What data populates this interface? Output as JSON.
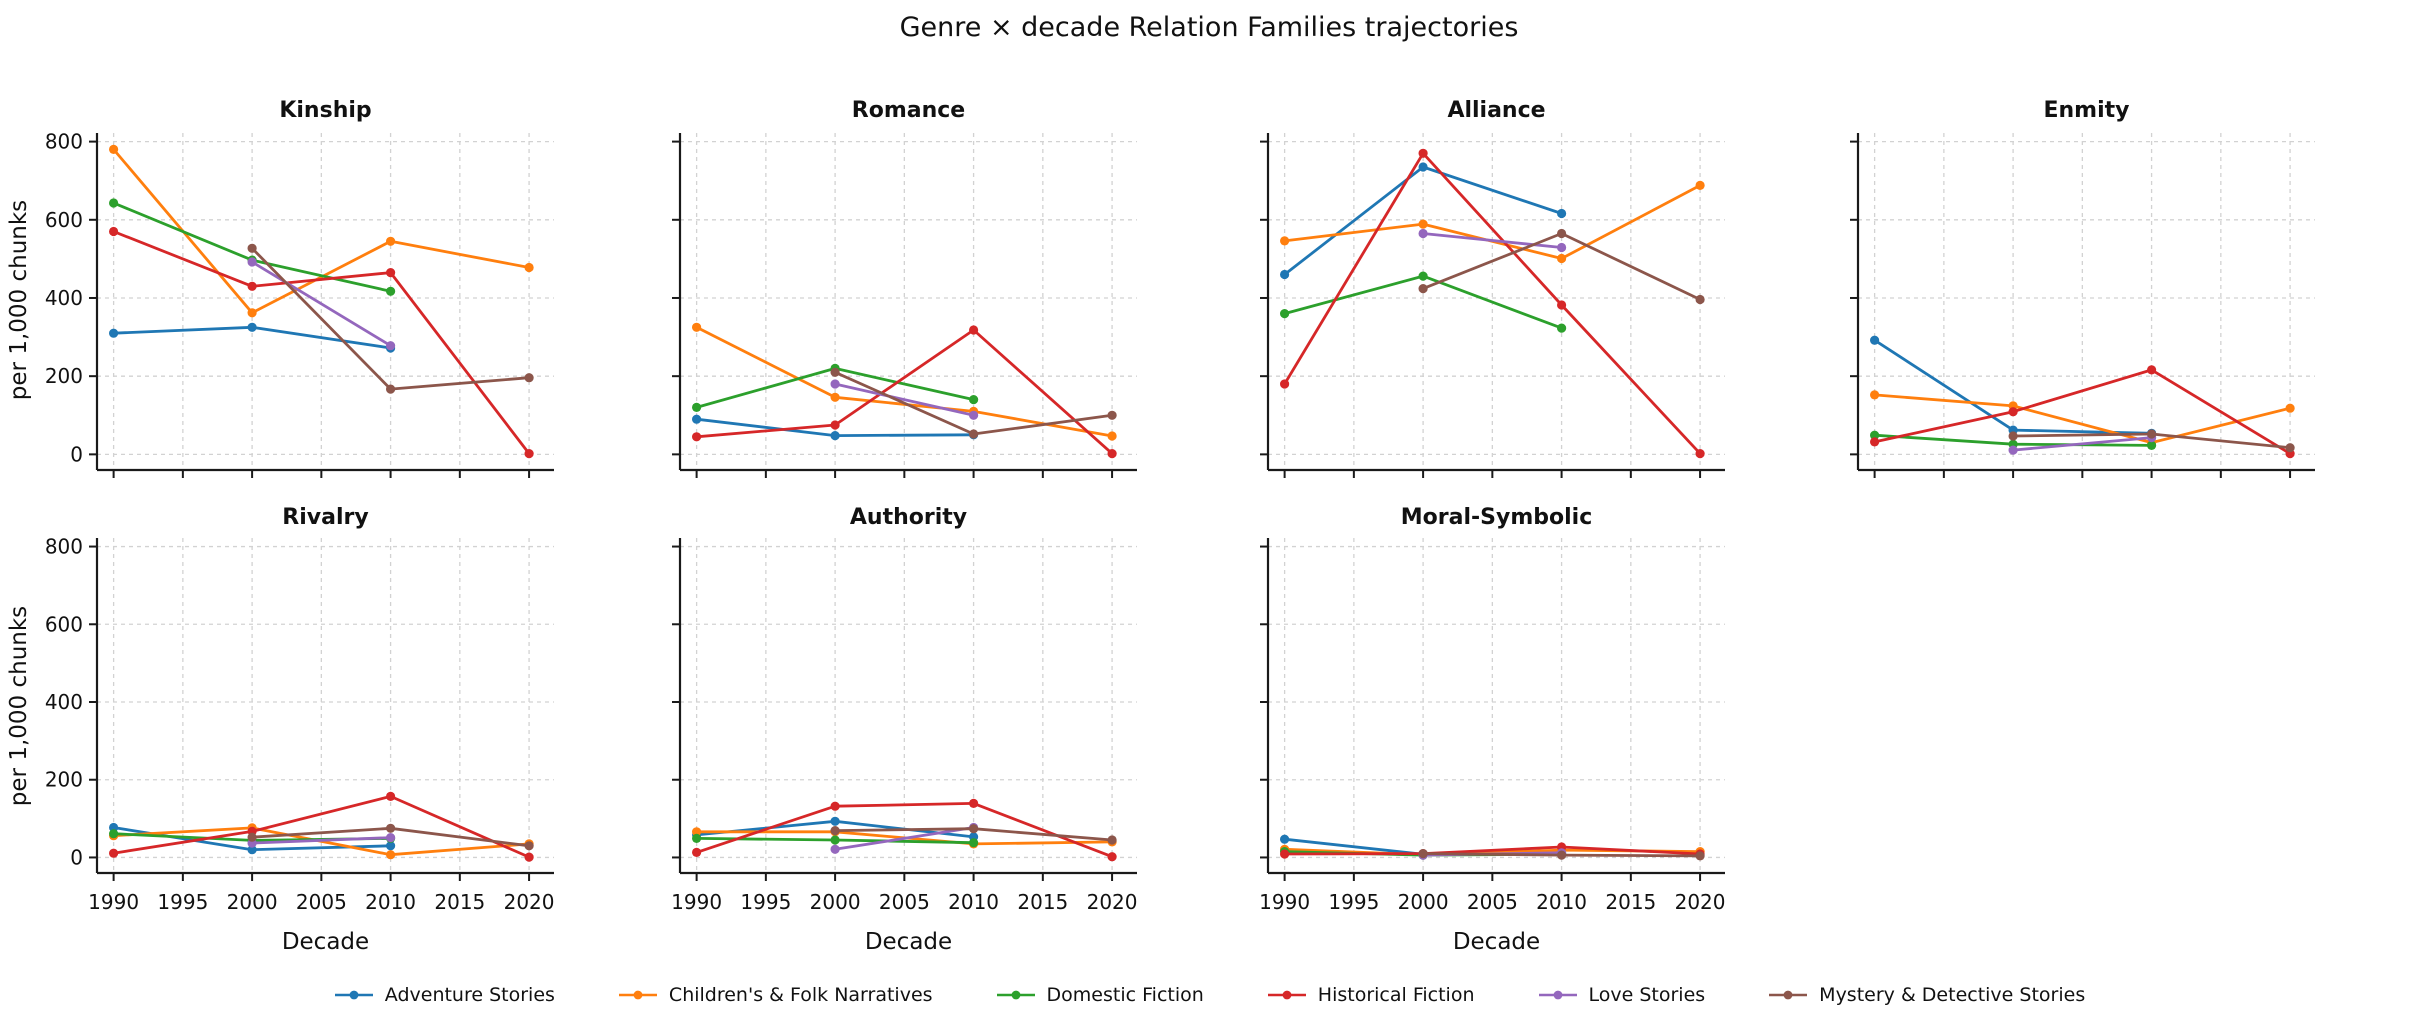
{
  "title": "Genre × decade Relation Families trajectories",
  "axes": {
    "xlabel": "Decade",
    "ylabel": "per 1,000 chunks",
    "x_ticks": [
      1990,
      1995,
      2000,
      2005,
      2010,
      2015,
      2020
    ],
    "y_ticks": [
      0,
      200,
      400,
      600,
      800
    ],
    "x_range": [
      1988.8,
      2021.8
    ],
    "grid": true
  },
  "legend": {
    "position": "bottom-center",
    "entries": [
      {
        "label": "Adventure Stories",
        "color": "#1f77b4"
      },
      {
        "label": "Children's & Folk Narratives",
        "color": "#ff7f0e"
      },
      {
        "label": "Domestic Fiction",
        "color": "#2ca02c"
      },
      {
        "label": "Historical Fiction",
        "color": "#d62728"
      },
      {
        "label": "Love Stories",
        "color": "#9467bd"
      },
      {
        "label": "Mystery & Detective Stories",
        "color": "#8c564b"
      }
    ]
  },
  "chart_data": {
    "type": "line",
    "unit": "per 1,000 chunks",
    "x_years": [
      1990,
      2000,
      2010,
      2020
    ],
    "panels": [
      {
        "title": "Kinship",
        "series": [
          {
            "name": "Adventure Stories",
            "x": [
              1990,
              2000,
              2010
            ],
            "y": [
              310,
              325,
              272
            ]
          },
          {
            "name": "Children's & Folk Narratives",
            "x": [
              1990,
              2000,
              2010,
              2020
            ],
            "y": [
              780,
              362,
              545,
              478
            ]
          },
          {
            "name": "Domestic Fiction",
            "x": [
              1990,
              2000,
              2010
            ],
            "y": [
              643,
              497,
              417
            ]
          },
          {
            "name": "Historical Fiction",
            "x": [
              1990,
              2000,
              2010,
              2020
            ],
            "y": [
              570,
              430,
              465,
              2
            ]
          },
          {
            "name": "Love Stories",
            "x": [
              2000,
              2010
            ],
            "y": [
              492,
              278
            ]
          },
          {
            "name": "Mystery & Detective Stories",
            "x": [
              2000,
              2010,
              2020
            ],
            "y": [
              527,
              167,
              196
            ]
          }
        ]
      },
      {
        "title": "Romance",
        "series": [
          {
            "name": "Adventure Stories",
            "x": [
              1990,
              2000,
              2010
            ],
            "y": [
              90,
              48,
              50
            ]
          },
          {
            "name": "Children's & Folk Narratives",
            "x": [
              1990,
              2000,
              2010,
              2020
            ],
            "y": [
              325,
              146,
              110,
              47
            ]
          },
          {
            "name": "Domestic Fiction",
            "x": [
              1990,
              2000,
              2010
            ],
            "y": [
              120,
              220,
              140
            ]
          },
          {
            "name": "Historical Fiction",
            "x": [
              1990,
              2000,
              2010,
              2020
            ],
            "y": [
              45,
              75,
              318,
              2
            ]
          },
          {
            "name": "Love Stories",
            "x": [
              2000,
              2010
            ],
            "y": [
              180,
              100
            ]
          },
          {
            "name": "Mystery & Detective Stories",
            "x": [
              2000,
              2010,
              2020
            ],
            "y": [
              210,
              52,
              100
            ]
          }
        ]
      },
      {
        "title": "Alliance",
        "series": [
          {
            "name": "Adventure Stories",
            "x": [
              1990,
              2000,
              2010
            ],
            "y": [
              460,
              735,
              616
            ]
          },
          {
            "name": "Children's & Folk Narratives",
            "x": [
              1990,
              2000,
              2010,
              2020
            ],
            "y": [
              546,
              589,
              501,
              688
            ]
          },
          {
            "name": "Domestic Fiction",
            "x": [
              1990,
              2000,
              2010
            ],
            "y": [
              360,
              456,
              323
            ]
          },
          {
            "name": "Historical Fiction",
            "x": [
              1990,
              2000,
              2010,
              2020
            ],
            "y": [
              180,
              770,
              382,
              2
            ]
          },
          {
            "name": "Love Stories",
            "x": [
              2000,
              2010
            ],
            "y": [
              565,
              529
            ]
          },
          {
            "name": "Mystery & Detective Stories",
            "x": [
              2000,
              2010,
              2020
            ],
            "y": [
              424,
              565,
              396
            ]
          }
        ]
      },
      {
        "title": "Enmity",
        "series": [
          {
            "name": "Adventure Stories",
            "x": [
              1990,
              2000,
              2010
            ],
            "y": [
              292,
              62,
              54
            ]
          },
          {
            "name": "Children's & Folk Narratives",
            "x": [
              1990,
              2000,
              2010,
              2020
            ],
            "y": [
              152,
              124,
              30,
              118
            ]
          },
          {
            "name": "Domestic Fiction",
            "x": [
              1990,
              2000,
              2010
            ],
            "y": [
              49,
              26,
              23
            ]
          },
          {
            "name": "Historical Fiction",
            "x": [
              1990,
              2000,
              2010,
              2020
            ],
            "y": [
              32,
              109,
              216,
              2
            ]
          },
          {
            "name": "Love Stories",
            "x": [
              2000,
              2010
            ],
            "y": [
              11,
              43
            ]
          },
          {
            "name": "Mystery & Detective Stories",
            "x": [
              2000,
              2010,
              2020
            ],
            "y": [
              47,
              52,
              17
            ]
          }
        ]
      },
      {
        "title": "Rivalry",
        "series": [
          {
            "name": "Adventure Stories",
            "x": [
              1990,
              2000,
              2010
            ],
            "y": [
              77,
              20,
              30
            ]
          },
          {
            "name": "Children's & Folk Narratives",
            "x": [
              1990,
              2000,
              2010,
              2020
            ],
            "y": [
              56,
              76,
              7,
              35
            ]
          },
          {
            "name": "Domestic Fiction",
            "x": [
              1990,
              2000,
              2010
            ],
            "y": [
              61,
              44,
              49
            ]
          },
          {
            "name": "Historical Fiction",
            "x": [
              1990,
              2000,
              2010,
              2020
            ],
            "y": [
              11,
              67,
              157,
              1
            ]
          },
          {
            "name": "Love Stories",
            "x": [
              2000,
              2010
            ],
            "y": [
              37,
              51
            ]
          },
          {
            "name": "Mystery & Detective Stories",
            "x": [
              2000,
              2010,
              2020
            ],
            "y": [
              52,
              75,
              30
            ]
          }
        ]
      },
      {
        "title": "Authority",
        "series": [
          {
            "name": "Adventure Stories",
            "x": [
              1990,
              2000,
              2010
            ],
            "y": [
              58,
              93,
              53
            ]
          },
          {
            "name": "Children's & Folk Narratives",
            "x": [
              1990,
              2000,
              2010,
              2020
            ],
            "y": [
              66,
              66,
              35,
              40
            ]
          },
          {
            "name": "Domestic Fiction",
            "x": [
              1990,
              2000,
              2010
            ],
            "y": [
              49,
              45,
              38
            ]
          },
          {
            "name": "Historical Fiction",
            "x": [
              1990,
              2000,
              2010,
              2020
            ],
            "y": [
              13,
              132,
              139,
              2
            ]
          },
          {
            "name": "Love Stories",
            "x": [
              2000,
              2010
            ],
            "y": [
              21,
              77
            ]
          },
          {
            "name": "Mystery & Detective Stories",
            "x": [
              2000,
              2010,
              2020
            ],
            "y": [
              69,
              74,
              45
            ]
          }
        ]
      },
      {
        "title": "Moral-Symbolic",
        "series": [
          {
            "name": "Adventure Stories",
            "x": [
              1990,
              2000,
              2010
            ],
            "y": [
              47,
              8,
              10
            ]
          },
          {
            "name": "Children's & Folk Narratives",
            "x": [
              1990,
              2000,
              2010,
              2020
            ],
            "y": [
              21,
              7,
              19,
              15
            ]
          },
          {
            "name": "Domestic Fiction",
            "x": [
              1990,
              2000,
              2010
            ],
            "y": [
              15,
              6,
              8
            ]
          },
          {
            "name": "Historical Fiction",
            "x": [
              1990,
              2000,
              2010,
              2020
            ],
            "y": [
              9,
              10,
              27,
              9
            ]
          },
          {
            "name": "Love Stories",
            "x": [
              2000,
              2010
            ],
            "y": [
              6,
              12
            ]
          },
          {
            "name": "Mystery & Detective Stories",
            "x": [
              2000,
              2010,
              2020
            ],
            "y": [
              10,
              6,
              4
            ]
          }
        ]
      }
    ]
  }
}
